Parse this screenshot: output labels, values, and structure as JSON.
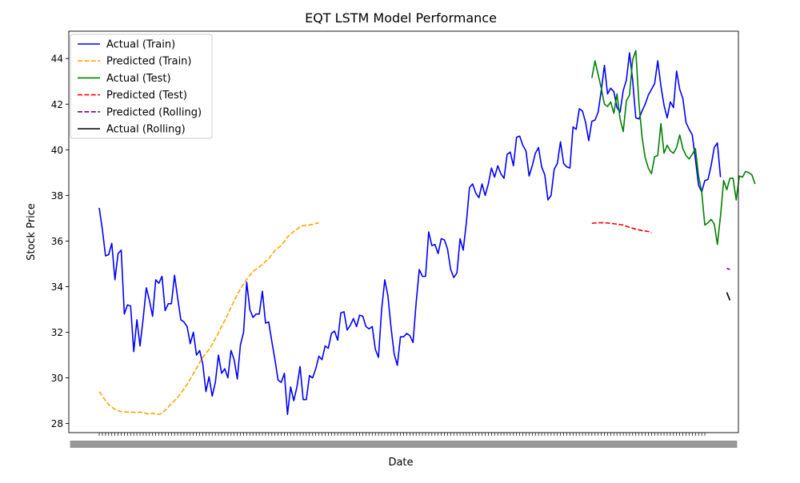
{
  "chart_data": {
    "type": "line",
    "title": "EQT LSTM Model Performance",
    "xlabel": "Date",
    "ylabel": "Stock Price",
    "ylim": [
      27.6,
      45.2
    ],
    "xlim": [
      -9.7,
      203.7
    ],
    "yticks": [
      28,
      30,
      32,
      34,
      36,
      38,
      40,
      42,
      44
    ],
    "grid": false,
    "legend_position": "top-left",
    "x_tick_note": "x tick labels are dense, overlapping date strings (illegible)",
    "series": [
      {
        "name": "Actual (Train)",
        "color": "#0000ff",
        "style": "solid",
        "start_index": 0,
        "values": [
          37.45,
          36.5,
          35.35,
          35.4,
          35.9,
          34.3,
          35.45,
          35.6,
          32.8,
          33.2,
          33.15,
          31.15,
          32.55,
          31.4,
          32.6,
          33.95,
          33.4,
          32.7,
          34.3,
          34.15,
          34.45,
          32.95,
          33.25,
          33.25,
          34.5,
          33.5,
          32.55,
          32.45,
          32.25,
          31.5,
          32.0,
          31.0,
          31.2,
          30.6,
          29.4,
          30.05,
          29.2,
          29.8,
          31.0,
          30.2,
          30.4,
          30.0,
          31.2,
          30.8,
          29.95,
          31.45,
          32.0,
          34.2,
          33.0,
          32.65,
          32.8,
          32.8,
          33.8,
          32.4,
          32.45,
          31.6,
          30.8,
          29.9,
          29.8,
          30.2,
          28.4,
          29.6,
          29.0,
          29.6,
          30.5,
          29.05,
          29.05,
          30.1,
          30.0,
          30.4,
          30.95,
          30.8,
          31.4,
          31.3,
          31.95,
          32.05,
          31.65,
          32.85,
          32.9,
          32.1,
          32.3,
          32.6,
          32.25,
          32.75,
          32.7,
          32.25,
          32.15,
          32.25,
          31.25,
          30.9,
          33.0,
          34.3,
          33.6,
          32.2,
          31.05,
          30.55,
          31.8,
          31.8,
          31.95,
          31.85,
          31.55,
          33.3,
          34.75,
          34.45,
          34.45,
          36.4,
          35.8,
          35.85,
          35.45,
          36.1,
          36.05,
          35.65,
          34.75,
          34.4,
          34.6,
          36.1,
          35.6,
          36.8,
          38.35,
          38.5,
          38.1,
          37.9,
          38.5,
          38.0,
          38.5,
          39.2,
          38.8,
          39.3,
          38.95,
          38.75,
          39.8,
          39.9,
          39.3,
          40.55,
          40.6,
          40.2,
          39.95,
          38.85,
          39.3,
          39.85,
          40.1,
          39.25,
          38.9,
          37.8,
          38.0,
          39.15,
          39.4,
          40.35,
          39.4,
          39.25,
          39.2,
          41.0,
          40.9,
          41.8,
          41.7,
          41.2,
          40.4,
          41.25,
          41.3,
          41.65,
          42.6,
          43.7,
          42.45,
          42.7,
          42.55,
          41.85,
          41.65,
          42.6,
          43.05,
          44.25,
          43.05,
          41.4,
          41.35,
          41.7,
          42.0,
          42.4,
          42.65,
          42.9,
          43.9,
          42.8,
          41.95,
          41.4,
          42.1,
          41.85,
          43.45,
          42.65,
          42.25,
          41.2,
          40.9,
          40.65,
          39.6,
          38.45,
          38.15,
          38.65,
          38.7,
          39.3,
          40.1,
          40.3,
          38.8
        ]
      },
      {
        "name": "Predicted (Train)",
        "color": "#ffa500",
        "style": "dashed",
        "start_index": 0,
        "values": [
          29.4,
          29.2,
          29.0,
          28.83,
          28.72,
          28.62,
          28.56,
          28.52,
          28.51,
          28.5,
          28.5,
          28.49,
          28.48,
          28.5,
          28.47,
          28.44,
          28.4,
          28.45,
          28.41,
          28.4,
          28.45,
          28.58,
          28.72,
          28.88,
          29.0,
          29.15,
          29.32,
          29.52,
          29.72,
          29.95,
          30.18,
          30.42,
          30.68,
          30.9,
          31.08,
          31.26,
          31.46,
          31.72,
          31.98,
          32.25,
          32.52,
          32.8,
          33.1,
          33.38,
          33.65,
          33.9,
          34.12,
          34.32,
          34.5,
          34.66,
          34.76,
          34.86,
          34.97,
          35.1,
          35.22,
          35.42,
          35.58,
          35.7,
          35.8,
          35.98,
          36.18,
          36.3,
          36.42,
          36.52,
          36.62,
          36.68,
          36.69,
          36.7,
          36.73,
          36.77,
          36.8
        ]
      },
      {
        "name": "Actual (Test)",
        "color": "#008000",
        "style": "solid",
        "start_index": 157,
        "values": [
          43.15,
          43.9,
          43.3,
          42.7,
          42.0,
          41.9,
          42.1,
          41.6,
          42.45,
          41.35,
          40.8,
          42.15,
          42.4,
          43.95,
          44.35,
          42.05,
          40.55,
          39.65,
          39.2,
          38.95,
          39.7,
          39.75,
          41.15,
          39.85,
          40.2,
          39.95,
          39.85,
          40.1,
          40.65,
          40.05,
          39.75,
          39.6,
          39.8,
          40.05,
          38.85,
          38.15,
          36.7,
          36.8,
          36.95,
          36.75,
          35.85,
          37.1,
          38.65,
          38.25,
          38.75,
          38.75,
          37.8,
          38.85,
          38.8,
          39.05,
          39.0,
          38.9,
          38.5
        ]
      },
      {
        "name": "Predicted (Test)",
        "color": "#ff0000",
        "style": "dashed",
        "start_index": 157,
        "values": [
          36.78,
          36.79,
          36.8,
          36.8,
          36.8,
          36.79,
          36.77,
          36.76,
          36.74,
          36.72,
          36.7,
          36.65,
          36.6,
          36.56,
          36.52,
          36.49,
          36.46,
          36.44,
          36.42,
          36.35
        ]
      },
      {
        "name": "Predicted (Rolling)",
        "color": "#800080",
        "style": "dashed",
        "start_index": 200,
        "values": [
          34.8,
          34.75
        ]
      },
      {
        "name": "Actual (Rolling)",
        "color": "#000000",
        "style": "solid",
        "start_index": 200,
        "values": [
          33.75,
          33.4
        ]
      }
    ]
  }
}
